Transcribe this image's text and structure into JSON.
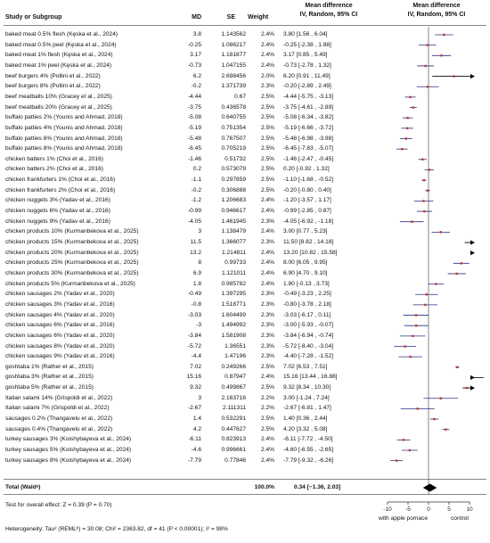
{
  "header": {
    "study": "Study or Subgroup",
    "md": "MD",
    "se": "SE",
    "weight": "Weight",
    "md_ci_title": "Mean difference",
    "md_ci_sub": "IV, Random, 95% CI",
    "plot_title": "Mean difference",
    "plot_sub": "IV, Random, 95% CI"
  },
  "total": {
    "label": "Total (Waldᵃ)",
    "weight": "100.0%",
    "ci_text": "0.34 [−1.36, 2.03]",
    "md": 0.34,
    "lower": -1.36,
    "upper": 2.03
  },
  "footer": {
    "overall_test": "Test for overall effect: Z = 0.39 (P = 0.70)",
    "heterogeneity": "Heterogeneity: Tau² (REMLᵇ) = 30.08; Chi² = 2363.82, df = 41 (P < 0.00001); I² = 98%",
    "favours_left": "with apple pomace",
    "favours_right": "control"
  },
  "chart_data": {
    "type": "forest",
    "xlim": [
      -10,
      10
    ],
    "xticks": [
      -10,
      -5,
      0,
      5,
      10
    ],
    "null_line": 0,
    "studies": [
      {
        "label": "baked meat 0.5% flesh (Kęska et al., 2024)",
        "md": "3.8",
        "se": "1.143562",
        "weight": "2.4%",
        "ci": "3.80 [1.56 , 6.04]",
        "x": 3.8,
        "lo": 1.56,
        "hi": 6.04
      },
      {
        "label": "baked meat 0.5% peel (Kęska et al., 2024)",
        "md": "-0.25",
        "se": "1.086217",
        "weight": "2.4%",
        "ci": "-0.25 [-2.38 , 1.88]",
        "x": -0.25,
        "lo": -2.38,
        "hi": 1.88
      },
      {
        "label": "baked meat 1% flesh (Kęska et al., 2024)",
        "md": "3.17",
        "se": "1.181877",
        "weight": "2.4%",
        "ci": "3.17 [0.85 , 5.49]",
        "x": 3.17,
        "lo": 0.85,
        "hi": 5.49
      },
      {
        "label": "baked meat 1% peel (Kęska et al., 2024)",
        "md": "-0.73",
        "se": "1.047155",
        "weight": "2.4%",
        "ci": "-0.73 [-2.78 , 1.32]",
        "x": -0.73,
        "lo": -2.78,
        "hi": 1.32
      },
      {
        "label": "beef burgers 4% (Pollini et al., 2022)",
        "md": "6.2",
        "se": "2.698456",
        "weight": "2.0%",
        "ci": "6.20 [0.91 , 11.49]",
        "x": 6.2,
        "lo": 0.91,
        "hi": 11.49
      },
      {
        "label": "beef burgers 8% (Pollini et al., 2022)",
        "md": "-0.2",
        "se": "1.371739",
        "weight": "2.3%",
        "ci": "-0.20 [-2.89 , 2.49]",
        "x": -0.2,
        "lo": -2.89,
        "hi": 2.49
      },
      {
        "label": "beef meatballs 10% (Gracey et al., 2025)",
        "md": "-4.44",
        "se": "0.67",
        "weight": "2.5%",
        "ci": "-4.44 [-5.75 , -3.13]",
        "x": -4.44,
        "lo": -5.75,
        "hi": -3.13
      },
      {
        "label": "beef meatballs 20% (Gracey et al., 2025)",
        "md": "-3.75",
        "se": "0.436578",
        "weight": "2.5%",
        "ci": "-3.75 [-4.61 , -2.89]",
        "x": -3.75,
        "lo": -4.61,
        "hi": -2.89
      },
      {
        "label": "buffalo patties 2% (Younis and Ahmad, 2018)",
        "md": "-5.08",
        "se": "0.640755",
        "weight": "2.5%",
        "ci": "-5.08 [-6.34 , -3.82]",
        "x": -5.08,
        "lo": -6.34,
        "hi": -3.82
      },
      {
        "label": "buffalo patties 4% (Younis and Ahmad, 2018)",
        "md": "-5.19",
        "se": "0.751354",
        "weight": "2.5%",
        "ci": "-5.19 [-6.66 , -3.72]",
        "x": -5.19,
        "lo": -6.66,
        "hi": -3.72
      },
      {
        "label": "buffalo patties 6% (Younis and Ahmad, 2018)",
        "md": "-5.48",
        "se": "0.767507",
        "weight": "2.5%",
        "ci": "-5.48 [-6.98 , -3.98]",
        "x": -5.48,
        "lo": -6.98,
        "hi": -3.98
      },
      {
        "label": "buffalo patties 8% (Younis and Ahmad, 2018)",
        "md": "-6.45",
        "se": "0.705219",
        "weight": "2.5%",
        "ci": "-6.45 [-7.83 , -5.07]",
        "x": -6.45,
        "lo": -7.83,
        "hi": -5.07
      },
      {
        "label": "chicken batters 1% (Choi et al., 2016)",
        "md": "-1.46",
        "se": "0.51732",
        "weight": "2.5%",
        "ci": "-1.46 [-2.47 , -0.45]",
        "x": -1.46,
        "lo": -2.47,
        "hi": -0.45
      },
      {
        "label": "chicken batters 2% (Choi et al., 2016)",
        "md": "0.2",
        "se": "0.573079",
        "weight": "2.5%",
        "ci": "0.20 [-0.92 , 1.32]",
        "x": 0.2,
        "lo": -0.92,
        "hi": 1.32
      },
      {
        "label": "chicken frankfurters 1% (Choi et al., 2016)",
        "md": "-1.1",
        "se": "0.297859",
        "weight": "2.5%",
        "ci": "-1.10 [-1.68 , -0.52]",
        "x": -1.1,
        "lo": -1.68,
        "hi": -0.52
      },
      {
        "label": "chicken frankfurters 2% (Choi et al., 2016)",
        "md": "-0.2",
        "se": "0.306888",
        "weight": "2.5%",
        "ci": "-0.20 [-0.80 , 0.40]",
        "x": -0.2,
        "lo": -0.8,
        "hi": 0.4
      },
      {
        "label": "chicken nuggets 3% (Yadav et al., 2016)",
        "md": "-1.2",
        "se": "1.206683",
        "weight": "2.4%",
        "ci": "-1.20 [-3.57 , 1.17]",
        "x": -1.2,
        "lo": -3.57,
        "hi": 1.17
      },
      {
        "label": "chicken nuggets 6% (Yadav et al., 2016)",
        "md": "-0.99",
        "se": "0.946617",
        "weight": "2.4%",
        "ci": "-0.99 [-2.85 , 0.87]",
        "x": -0.99,
        "lo": -2.85,
        "hi": 0.87
      },
      {
        "label": "chicken nuggets 9% (Yadav et al., 2016)",
        "md": "-4.05",
        "se": "1.461945",
        "weight": "2.3%",
        "ci": "-4.05 [-6.92 , -1.18]",
        "x": -4.05,
        "lo": -6.92,
        "hi": -1.18
      },
      {
        "label": "chicken products 10% (Kurmanbekova et al., 2025)",
        "md": "3",
        "se": "1.138479",
        "weight": "2.4%",
        "ci": "3.00 [0.77 , 5.23]",
        "x": 3.0,
        "lo": 0.77,
        "hi": 5.23
      },
      {
        "label": "chicken products 15% (Kurmanbekova et al., 2025)",
        "md": "11.5",
        "se": "1.366077",
        "weight": "2.3%",
        "ci": "11.50 [8.82 , 14.18]",
        "x": 11.5,
        "lo": 8.82,
        "hi": 14.18
      },
      {
        "label": "chicken products 20% (Kurmanbekova et al., 2025)",
        "md": "13.2",
        "se": "1.214811",
        "weight": "2.4%",
        "ci": "13.20 [10.82 , 15.58]",
        "x": 13.2,
        "lo": 10.82,
        "hi": 15.58
      },
      {
        "label": "chicken products 25% (Kurmanbekova et al., 2025)",
        "md": "8",
        "se": "0.99733",
        "weight": "2.4%",
        "ci": "8.00 [6.05 , 9.95]",
        "x": 8.0,
        "lo": 6.05,
        "hi": 9.95
      },
      {
        "label": "chicken products 30% (Kurmanbekova et al., 2025)",
        "md": "6.9",
        "se": "1.121011",
        "weight": "2.4%",
        "ci": "6.90 [4.70 , 9.10]",
        "x": 6.9,
        "lo": 4.7,
        "hi": 9.1
      },
      {
        "label": "chicken products 5% (Kurmanbekova et al., 2025)",
        "md": "1.8",
        "se": "0.985782",
        "weight": "2.4%",
        "ci": "1.80 [-0.13 , 3.73]",
        "x": 1.8,
        "lo": -0.13,
        "hi": 3.73
      },
      {
        "label": "chicken sausages 2% (Yadav et al., 2020)",
        "md": "-0.49",
        "se": "1.397295",
        "weight": "2.3%",
        "ci": "-0.49 [-3.23 , 2.25]",
        "x": -0.49,
        "lo": -3.23,
        "hi": 2.25
      },
      {
        "label": "chicken sausages 3% (Yadav et al., 2016)",
        "md": "-0.8",
        "se": "1.518771",
        "weight": "2.3%",
        "ci": "-0.80 [-3.78 , 2.18]",
        "x": -0.8,
        "lo": -3.78,
        "hi": 2.18
      },
      {
        "label": "chicken sausages 4% (Yadav et al., 2020)",
        "md": "-3.03",
        "se": "1.604499",
        "weight": "2.3%",
        "ci": "-3.03 [-6.17 , 0.11]",
        "x": -3.03,
        "lo": -6.17,
        "hi": 0.11
      },
      {
        "label": "chicken sausages 6% (Yadav et al., 2016)",
        "md": "-3",
        "se": "1.494992",
        "weight": "2.3%",
        "ci": "-3.00 [-5.93 , -0.07]",
        "x": -3.0,
        "lo": -5.93,
        "hi": -0.07
      },
      {
        "label": "chicken sausages 6% (Yadav et al., 2020)",
        "md": "-3.84",
        "se": "1.581908",
        "weight": "2.3%",
        "ci": "-3.84 [-6.94 , -0.74]",
        "x": -3.84,
        "lo": -6.94,
        "hi": -0.74
      },
      {
        "label": "chicken sausages 8% (Yadav et al., 2020)",
        "md": "-5.72",
        "se": "1.36551",
        "weight": "2.3%",
        "ci": "-5.72 [-8.40 , -3.04]",
        "x": -5.72,
        "lo": -8.4,
        "hi": -3.04
      },
      {
        "label": "chicken sausages 9% (Yadav et al., 2016)",
        "md": "-4.4",
        "se": "1.47196",
        "weight": "2.3%",
        "ci": "-4.40 [-7.28 , -1.52]",
        "x": -4.4,
        "lo": -7.28,
        "hi": -1.52
      },
      {
        "label": "goshtaba 1% (Rather et al., 2015)",
        "md": "7.02",
        "se": "0.249266",
        "weight": "2.5%",
        "ci": "7.02 [6.53 , 7.51]",
        "x": 7.02,
        "lo": 6.53,
        "hi": 7.51
      },
      {
        "label": "goshtaba 3% (Rather et al., 2015)",
        "md": "15.16",
        "se": "0.87947",
        "weight": "2.4%",
        "ci": "15.16 [13.44 , 16.88]",
        "x": 15.16,
        "lo": 13.44,
        "hi": 16.88
      },
      {
        "label": "goshtaba 5% (Rather et al., 2015)",
        "md": "9.32",
        "se": "0.499867",
        "weight": "2.5%",
        "ci": "9.32 [8.34 , 10.30]",
        "x": 9.32,
        "lo": 8.34,
        "hi": 10.3
      },
      {
        "label": "Italian salami 14% (Grispoldi et al., 2022)",
        "md": "3",
        "se": "2.163716",
        "weight": "2.2%",
        "ci": "3.00 [-1.24 , 7.24]",
        "x": 3.0,
        "lo": -1.24,
        "hi": 7.24
      },
      {
        "label": "Italian salami 7% (Grispoldi et al., 2022)",
        "md": "-2.67",
        "se": "2.111311",
        "weight": "2.2%",
        "ci": "-2.67 [-6.81 , 1.47]",
        "x": -2.67,
        "lo": -6.81,
        "hi": 1.47
      },
      {
        "label": "sausages 0.2% (Thangavelu et al., 2022)",
        "md": "1.4",
        "se": "0.532291",
        "weight": "2.5%",
        "ci": "1.40 [0.36 , 2.44]",
        "x": 1.4,
        "lo": 0.36,
        "hi": 2.44
      },
      {
        "label": "sausages 0.4% (Thangavelu et al., 2022)",
        "md": "4.2",
        "se": "0.447627",
        "weight": "2.5%",
        "ci": "4.20 [3.32 , 5.08]",
        "x": 4.2,
        "lo": 3.32,
        "hi": 5.08
      },
      {
        "label": "turkey sausages 3% (Koishybayeva et al., 2024)",
        "md": "-6.11",
        "se": "0.823913",
        "weight": "2.4%",
        "ci": "-6.11 [-7.72 , -4.50]",
        "x": -6.11,
        "lo": -7.72,
        "hi": -4.5
      },
      {
        "label": "turkey sausages 5% (Koishybayeva et al., 2024)",
        "md": "-4.6",
        "se": "0.996661",
        "weight": "2.4%",
        "ci": "-4.60 [-6.55 , -2.65]",
        "x": -4.6,
        "lo": -6.55,
        "hi": -2.65
      },
      {
        "label": "turkey sausages 8% (Koishybayeva et al., 2024)",
        "md": "-7.79",
        "se": "0.77846",
        "weight": "2.4%",
        "ci": "-7.79 [-9.32 , -6.26]",
        "x": -7.79,
        "lo": -9.32,
        "hi": -6.26
      }
    ],
    "colors": {
      "ci_line": "#2b2f8a",
      "point": "#c0392b",
      "diamond": "#000000",
      "axis": "#333333"
    }
  }
}
